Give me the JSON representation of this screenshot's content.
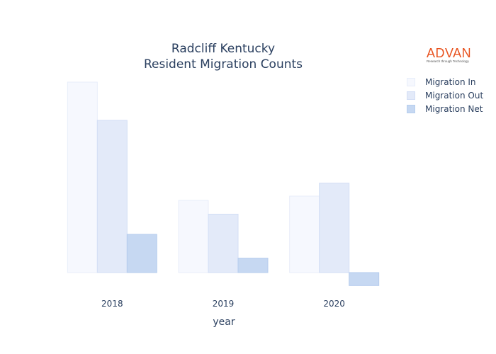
{
  "chart_data": {
    "type": "bar",
    "title_lines": [
      "Radcliff Kentucky",
      "Resident Migration Counts"
    ],
    "xlabel": "year",
    "ylabel": "",
    "categories": [
      "2018",
      "2019",
      "2020"
    ],
    "series": [
      {
        "name": "Migration In",
        "color": "#f6f8fe",
        "stroke": "#e8eefa",
        "values": [
          1320,
          500,
          530
        ]
      },
      {
        "name": "Migration Out",
        "color": "#e3eaf9",
        "stroke": "#d3def5",
        "values": [
          1055,
          405,
          620
        ]
      },
      {
        "name": "Migration Net",
        "color": "#c6d8f2",
        "stroke": "#b6cdee",
        "values": [
          265,
          100,
          -90
        ]
      }
    ],
    "ylim": [
      -100,
      1320
    ],
    "grid": false,
    "legend_position": "top-right",
    "y_tick_labels_visible": false
  },
  "logo": {
    "text": "ADVAN",
    "tagline": "Research through Technology"
  }
}
